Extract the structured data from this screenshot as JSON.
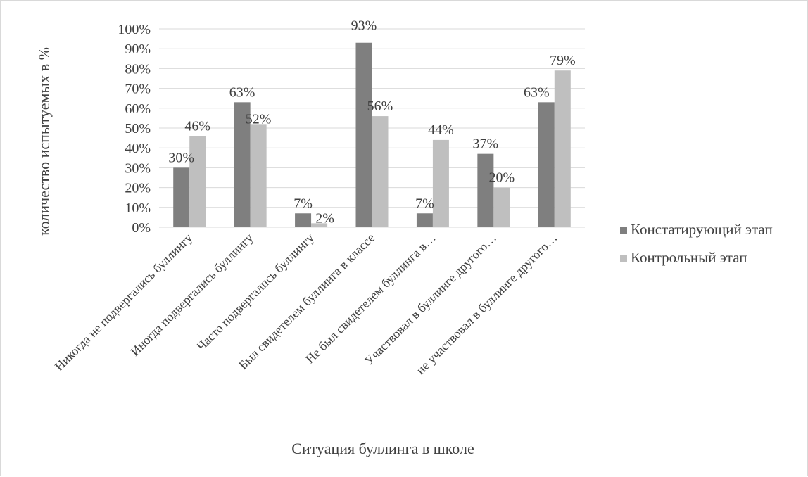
{
  "chart_data": {
    "type": "bar",
    "title": "",
    "xlabel": "Ситуация буллинга в школе",
    "ylabel": "количество испытуемых в %",
    "ylim": [
      0,
      100
    ],
    "yticks": [
      "0%",
      "10%",
      "20%",
      "30%",
      "40%",
      "50%",
      "60%",
      "70%",
      "80%",
      "90%",
      "100%"
    ],
    "categories": [
      "Никогда не подвергались буллингу",
      "Иногда подвергались буллингу",
      "Часто подвергались буллингу",
      "Был свидетелем буллинга в классе",
      "Не был свидетелем буллинга в…",
      "Участвовал в буллинге другого…",
      "не участвовал в буллинге другого…"
    ],
    "series": [
      {
        "name": "Констатирующий этап",
        "values": [
          30,
          63,
          7,
          93,
          7,
          37,
          63
        ],
        "labels": [
          "30%",
          "63%",
          "7%",
          "93%",
          "7%",
          "37%",
          "63%"
        ],
        "color": "#7f7f7f"
      },
      {
        "name": "Контрольный этап",
        "values": [
          46,
          52,
          2,
          56,
          44,
          20,
          79
        ],
        "labels": [
          "46%",
          "52%",
          "2%",
          "56%",
          "44%",
          "20%",
          "79%"
        ],
        "color": "#bfbfbf"
      }
    ],
    "grid": true,
    "legend": "right"
  }
}
